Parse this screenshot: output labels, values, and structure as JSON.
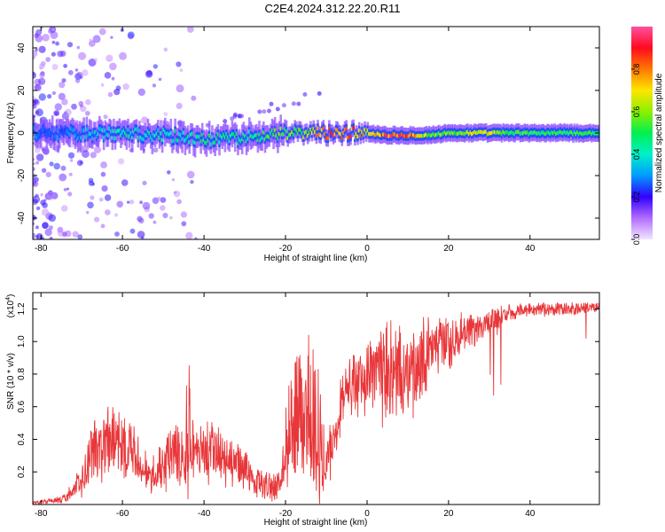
{
  "title": "C2E4.2024.312.22.20.R11",
  "colors": {
    "snr_line": "#e8373a",
    "axis": "#000000",
    "background": "#ffffff"
  },
  "chart_data": [
    {
      "type": "heatmap",
      "xlabel": "Height of straight line (km)",
      "ylabel": "Frequency (Hz)",
      "xlim": [
        -82,
        57
      ],
      "ylim": [
        -50,
        50
      ],
      "xticks": [
        -80,
        -60,
        -40,
        -20,
        0,
        20,
        40
      ],
      "yticks": [
        -40,
        -20,
        0,
        20,
        40
      ],
      "ridge": {
        "x": [
          -82,
          -75,
          -70,
          -65,
          -60,
          -55,
          -50,
          -45,
          -40,
          -35,
          -30,
          -25,
          -20,
          -15,
          -10,
          -5,
          0,
          5,
          10,
          15,
          20,
          25,
          30,
          35,
          40,
          45,
          50,
          57
        ],
        "freq": [
          0,
          0,
          0,
          0,
          0,
          -1,
          -1,
          -2,
          -3,
          -3,
          -2,
          -1,
          0,
          0,
          0,
          0,
          0,
          -1,
          -1,
          -1,
          0,
          0,
          0,
          0,
          0,
          0,
          0,
          0
        ],
        "amplitude": [
          0.3,
          0.3,
          0.35,
          0.4,
          0.45,
          0.45,
          0.45,
          0.45,
          0.5,
          0.5,
          0.5,
          0.55,
          0.6,
          0.65,
          0.95,
          0.9,
          0.75,
          0.95,
          0.9,
          0.65,
          0.6,
          0.68,
          0.7,
          0.6,
          0.55,
          0.55,
          0.55,
          0.55
        ]
      }
    },
    {
      "type": "colorbar",
      "label": "Normalized spectral amplitude",
      "ylim": [
        0,
        1
      ],
      "ticks": [
        "0.0",
        "0.2",
        "0.4",
        "0.6",
        "0.8"
      ]
    },
    {
      "type": "line",
      "xlabel": "Height of straight line (km)",
      "ylabel": "SNR (10 * v/v)",
      "yscale_label": "(x10",
      "yscale_exp": "4",
      "yscale_close": ")",
      "xlim": [
        -82,
        57
      ],
      "ylim": [
        0,
        1.3
      ],
      "xticks": [
        -80,
        -60,
        -40,
        -20,
        0,
        20,
        40
      ],
      "yticks": [
        "0.2",
        "0.4",
        "0.6",
        "0.8",
        "1.0",
        "1.2"
      ],
      "series": [
        {
          "x": [
            -82,
            -75,
            -72,
            -70,
            -68,
            -65,
            -62,
            -60,
            -58,
            -55,
            -52,
            -50,
            -48,
            -45,
            -44,
            -43,
            -40,
            -38,
            -35,
            -33,
            -30,
            -28,
            -25,
            -23,
            -21,
            -20,
            -18,
            -16,
            -15,
            -14,
            -13,
            -11,
            -9,
            -7,
            -5,
            -2,
            0,
            2,
            5,
            8,
            10,
            12,
            14,
            16,
            18,
            20,
            22,
            25,
            28,
            30,
            33,
            36,
            40,
            45,
            50,
            55,
            57
          ],
          "base": [
            0.01,
            0.03,
            0.08,
            0.15,
            0.3,
            0.35,
            0.45,
            0.42,
            0.35,
            0.22,
            0.2,
            0.24,
            0.3,
            0.32,
            0.55,
            0.35,
            0.3,
            0.32,
            0.28,
            0.25,
            0.22,
            0.15,
            0.13,
            0.1,
            0.15,
            0.35,
            0.5,
            0.6,
            0.65,
            0.6,
            0.5,
            0.3,
            0.35,
            0.55,
            0.75,
            0.72,
            0.75,
            0.78,
            0.82,
            0.8,
            0.78,
            0.82,
            0.9,
            0.95,
            1.0,
            1.0,
            1.02,
            1.05,
            1.08,
            1.12,
            1.15,
            1.18,
            1.2,
            1.2,
            1.2,
            1.21,
            1.21
          ],
          "spread": [
            0.01,
            0.02,
            0.05,
            0.12,
            0.2,
            0.22,
            0.25,
            0.28,
            0.2,
            0.12,
            0.12,
            0.18,
            0.2,
            0.2,
            0.5,
            0.2,
            0.18,
            0.2,
            0.18,
            0.15,
            0.12,
            0.1,
            0.08,
            0.08,
            0.1,
            0.25,
            0.4,
            0.45,
            0.5,
            0.55,
            0.45,
            0.3,
            0.2,
            0.18,
            0.15,
            0.2,
            0.25,
            0.28,
            0.3,
            0.28,
            0.3,
            0.28,
            0.25,
            0.2,
            0.18,
            0.16,
            0.14,
            0.12,
            0.1,
            0.08,
            0.07,
            0.05,
            0.04,
            0.04,
            0.04,
            0.03,
            0.03
          ]
        }
      ]
    }
  ]
}
